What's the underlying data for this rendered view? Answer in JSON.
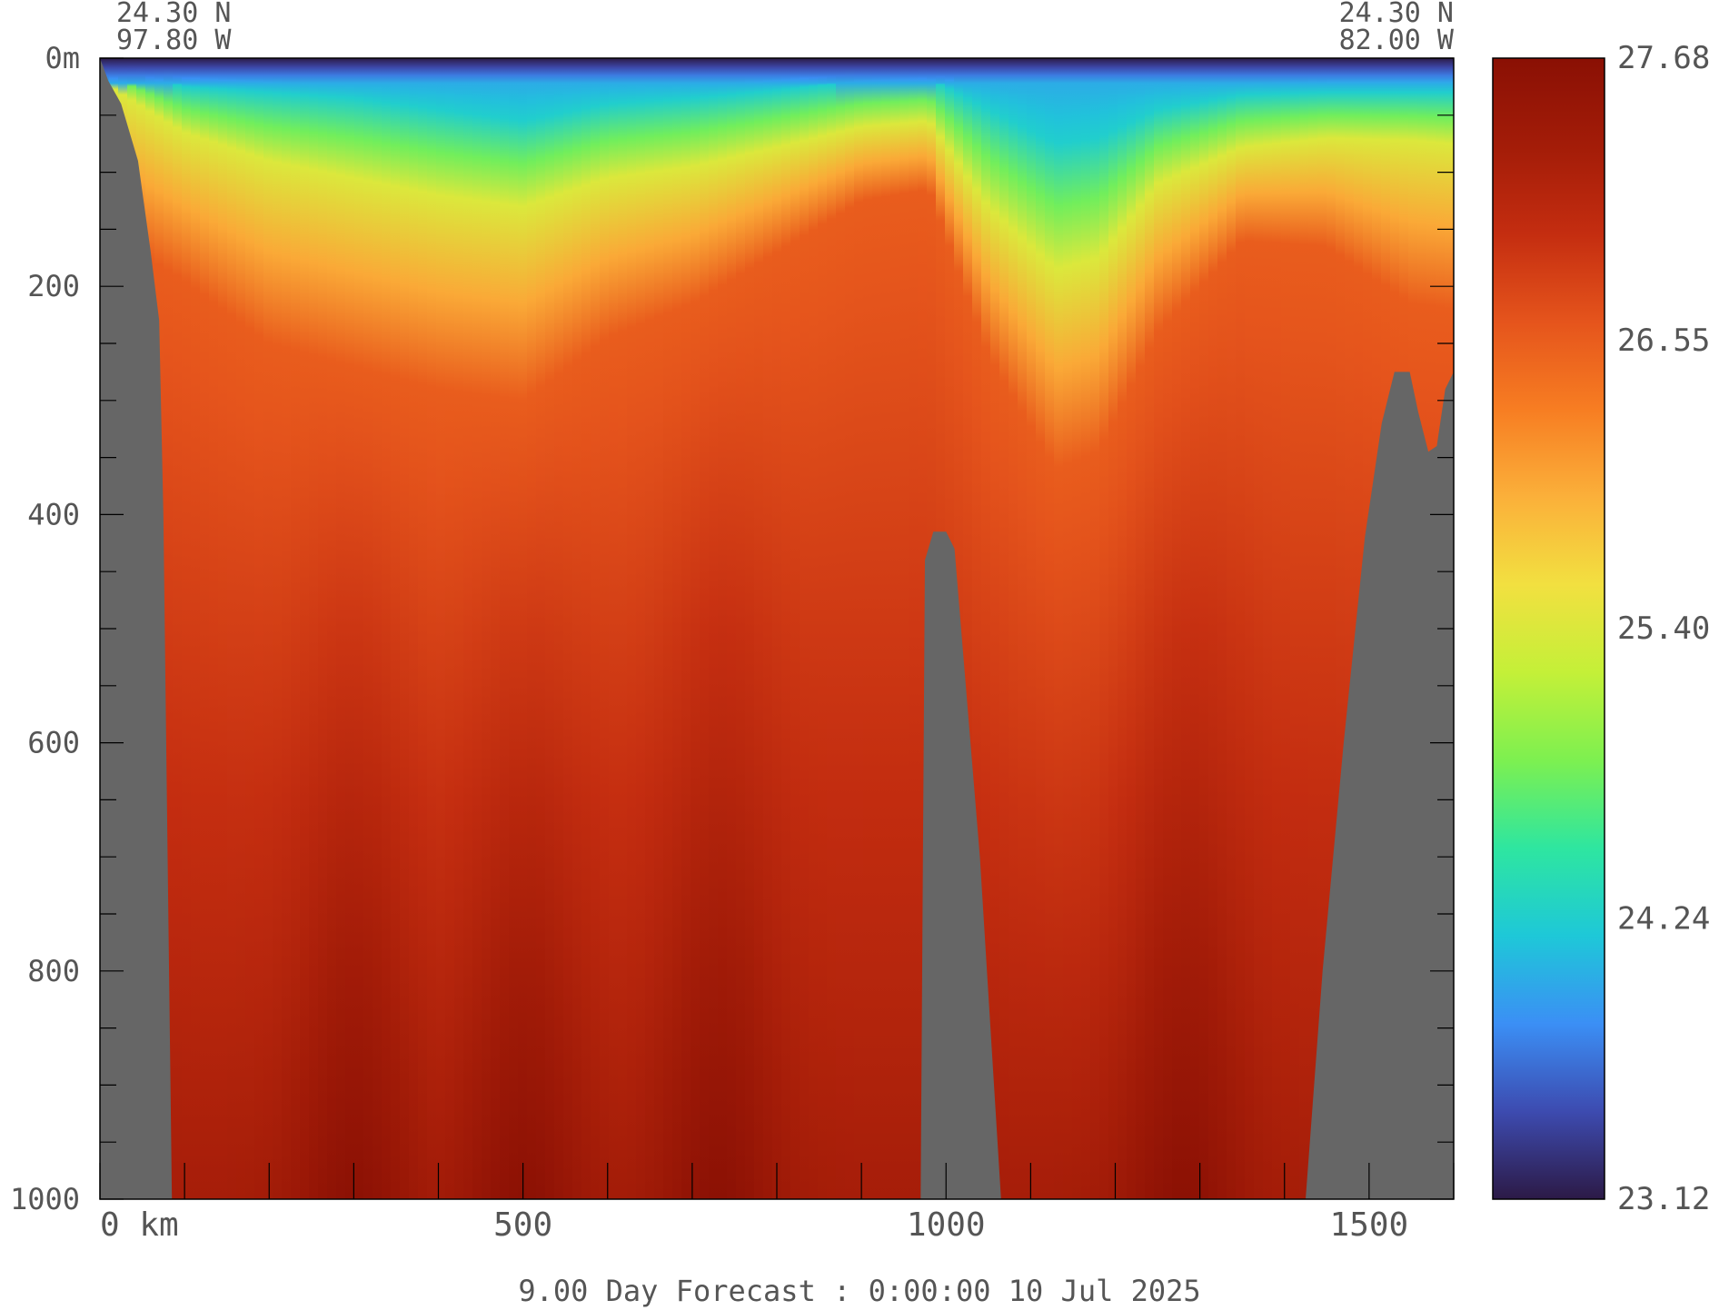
{
  "chart_data": {
    "type": "heatmap",
    "title": "",
    "corner_left": {
      "lat": "24.30 N",
      "lon": "97.80 W"
    },
    "corner_right": {
      "lat": "24.30 N",
      "lon": "82.00 W"
    },
    "x_axis": {
      "unit": "km",
      "range": [
        0,
        1600
      ],
      "ticks": [
        {
          "value": 0,
          "label": "0 km"
        },
        {
          "value": 500,
          "label": "500"
        },
        {
          "value": 1000,
          "label": "1000"
        },
        {
          "value": 1500,
          "label": "1500"
        }
      ]
    },
    "y_axis": {
      "unit": "m",
      "range": [
        0,
        1000
      ],
      "inverted": true,
      "ticks": [
        {
          "value": 0,
          "label": "0m"
        },
        {
          "value": 200,
          "label": "200"
        },
        {
          "value": 400,
          "label": "400"
        },
        {
          "value": 600,
          "label": "600"
        },
        {
          "value": 800,
          "label": "800"
        },
        {
          "value": 1000,
          "label": "1000"
        }
      ]
    },
    "colorbar": {
      "min": 23.12,
      "max": 27.68,
      "tick_labels": [
        "27.68",
        "26.55",
        "25.40",
        "24.24",
        "23.12"
      ],
      "tick_values": [
        27.68,
        26.55,
        25.4,
        24.24,
        23.12
      ],
      "colors": [
        "#2c1a46",
        "#3d4bb0",
        "#3b8ff5",
        "#1ec8d8",
        "#2ee6a0",
        "#7df050",
        "#c4f038",
        "#f2e040",
        "#fbb03a",
        "#f77d22",
        "#e5541c",
        "#c42d10",
        "#a31c08",
        "#8a1004"
      ]
    },
    "land_color": "#666666",
    "bathymetry_depth_m": [
      [
        0,
        0
      ],
      [
        10,
        20
      ],
      [
        25,
        40
      ],
      [
        45,
        90
      ],
      [
        60,
        170
      ],
      [
        70,
        230
      ],
      [
        75,
        400
      ],
      [
        80,
        700
      ],
      [
        85,
        1000
      ],
      [
        970,
        1000
      ],
      [
        975,
        440
      ],
      [
        985,
        415
      ],
      [
        1000,
        415
      ],
      [
        1010,
        430
      ],
      [
        1040,
        700
      ],
      [
        1065,
        1000
      ],
      [
        1425,
        1000
      ],
      [
        1445,
        800
      ],
      [
        1470,
        600
      ],
      [
        1495,
        420
      ],
      [
        1515,
        320
      ],
      [
        1530,
        275
      ],
      [
        1548,
        275
      ],
      [
        1558,
        310
      ],
      [
        1570,
        345
      ],
      [
        1580,
        340
      ],
      [
        1590,
        290
      ],
      [
        1600,
        275
      ]
    ],
    "upper_layer_depth_m": [
      {
        "x": 0,
        "d24": 5,
        "d25_4": 20,
        "d26_55": 150
      },
      {
        "x": 100,
        "d24": 25,
        "d25_4": 65,
        "d26_55": 195
      },
      {
        "x": 200,
        "d24": 30,
        "d25_4": 90,
        "d26_55": 250
      },
      {
        "x": 300,
        "d24": 35,
        "d25_4": 105,
        "d26_55": 270
      },
      {
        "x": 400,
        "d24": 45,
        "d25_4": 120,
        "d26_55": 290
      },
      {
        "x": 500,
        "d24": 55,
        "d25_4": 130,
        "d26_55": 300
      },
      {
        "x": 600,
        "d24": 40,
        "d25_4": 105,
        "d26_55": 245
      },
      {
        "x": 700,
        "d24": 35,
        "d25_4": 95,
        "d26_55": 215
      },
      {
        "x": 800,
        "d24": 28,
        "d25_4": 78,
        "d26_55": 170
      },
      {
        "x": 900,
        "d24": 20,
        "d25_4": 60,
        "d26_55": 125
      },
      {
        "x": 980,
        "d24": 18,
        "d25_4": 55,
        "d26_55": 115
      },
      {
        "x": 1050,
        "d24": 45,
        "d25_4": 130,
        "d26_55": 260
      },
      {
        "x": 1130,
        "d24": 75,
        "d25_4": 185,
        "d26_55": 360
      },
      {
        "x": 1180,
        "d24": 70,
        "d25_4": 175,
        "d26_55": 345
      },
      {
        "x": 1250,
        "d24": 45,
        "d25_4": 110,
        "d26_55": 240
      },
      {
        "x": 1350,
        "d24": 32,
        "d25_4": 78,
        "d26_55": 160
      },
      {
        "x": 1450,
        "d24": 30,
        "d25_4": 70,
        "d26_55": 165
      },
      {
        "x": 1550,
        "d24": 30,
        "d25_4": 72,
        "d26_55": 215
      },
      {
        "x": 1600,
        "d24": 30,
        "d25_4": 75,
        "d26_55": 220
      }
    ],
    "deep_warm_cores_x_km": [
      300,
      500,
      730,
      1280
    ]
  },
  "footer": "9.00 Day Forecast :  0:00:00  10 Jul 2025"
}
